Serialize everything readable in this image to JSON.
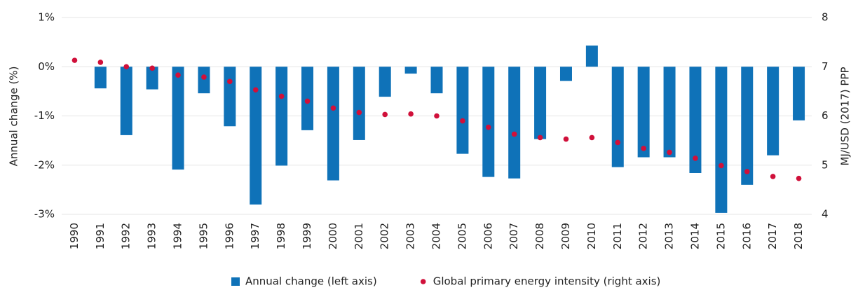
{
  "chart_data": {
    "type": "bar",
    "y_label": "Annual change (%)",
    "y2_label": "MJ/USD (2017) PPP",
    "categories": [
      "1990",
      "1991",
      "1992",
      "1993",
      "1994",
      "1995",
      "1996",
      "1997",
      "1998",
      "1999",
      "2000",
      "2001",
      "2002",
      "2003",
      "2004",
      "2005",
      "2006",
      "2007",
      "2008",
      "2009",
      "2010",
      "2011",
      "2012",
      "2013",
      "2014",
      "2015",
      "2016",
      "2017",
      "2018"
    ],
    "series": [
      {
        "name": "Annual change (left axis)",
        "type": "bar",
        "color": "#0f72b8",
        "values": [
          null,
          -0.44,
          -1.39,
          -0.46,
          -2.09,
          -0.54,
          -1.21,
          -2.8,
          -2.01,
          -1.29,
          -2.31,
          -1.49,
          -0.61,
          -0.14,
          -0.54,
          -1.77,
          -2.24,
          -2.27,
          -1.47,
          -0.29,
          0.43,
          -2.04,
          -1.84,
          -1.84,
          -2.16,
          -2.97,
          -2.4,
          -1.8,
          -1.09
        ]
      },
      {
        "name": "Global primary energy intensity (right axis)",
        "type": "scatter",
        "axis": "y2",
        "color": "#d0103a",
        "values": [
          7.13,
          7.09,
          7.0,
          6.97,
          6.83,
          6.79,
          6.7,
          6.53,
          6.4,
          6.3,
          6.16,
          6.07,
          6.03,
          6.04,
          6.0,
          5.9,
          5.77,
          5.63,
          5.56,
          5.53,
          5.56,
          5.46,
          5.34,
          5.26,
          5.14,
          4.99,
          4.87,
          4.77,
          4.73
        ]
      }
    ],
    "ylim": [
      -3,
      1
    ],
    "yticks": [
      {
        "value": -3,
        "label": "-3%"
      },
      {
        "value": -2,
        "label": "-2%"
      },
      {
        "value": -1,
        "label": "-1%"
      },
      {
        "value": 0,
        "label": "0%"
      },
      {
        "value": 1,
        "label": "1%"
      }
    ],
    "y2lim": [
      4,
      8
    ],
    "y2ticks": [
      4,
      5,
      6,
      7,
      8
    ],
    "grid": true,
    "legend": "bottom"
  }
}
